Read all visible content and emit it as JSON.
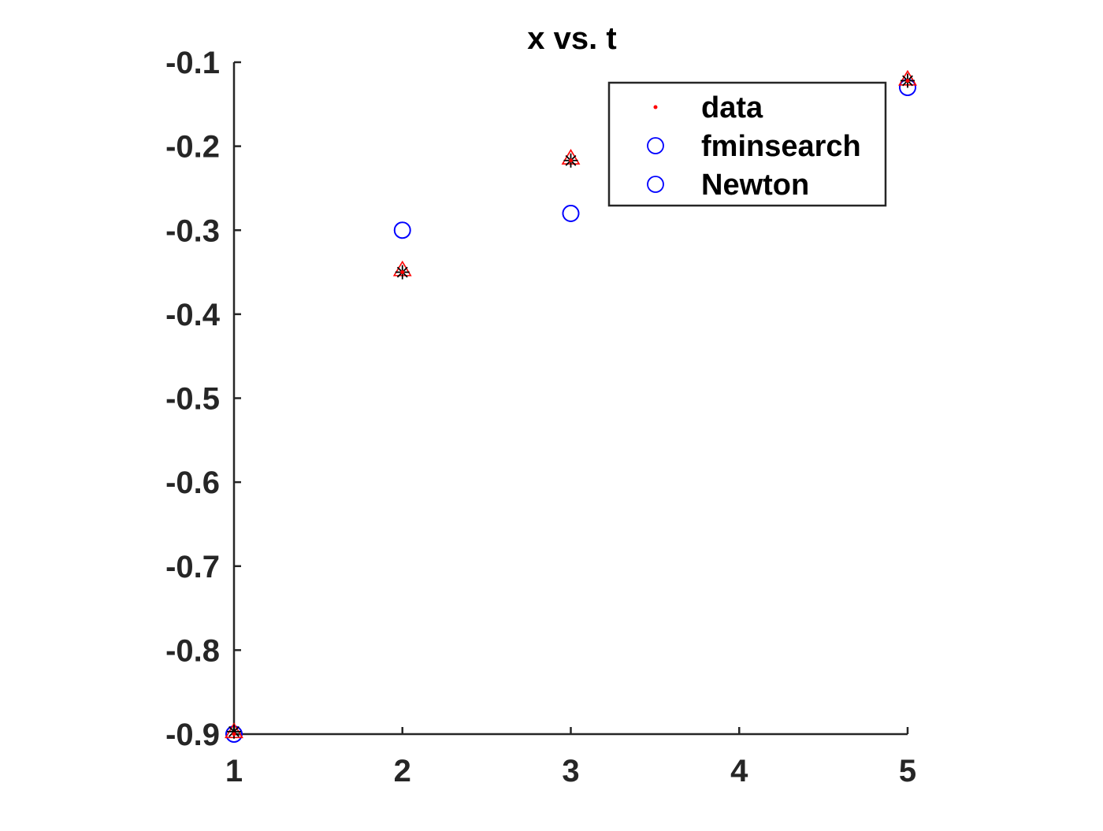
{
  "chart_data": {
    "type": "scatter",
    "title": "x vs. t",
    "xlabel": "",
    "ylabel": "",
    "xlim": [
      1,
      5
    ],
    "ylim": [
      -0.9,
      -0.1
    ],
    "xticks": [
      1,
      2,
      3,
      4,
      5
    ],
    "xtick_labels": [
      "1",
      "2",
      "3",
      "4",
      "5"
    ],
    "yticks": [
      -0.1,
      -0.2,
      -0.3,
      -0.4,
      -0.5,
      -0.6,
      -0.7,
      -0.8,
      -0.9
    ],
    "ytick_labels": [
      "-0.1",
      "-0.2",
      "-0.3",
      "-0.4",
      "-0.5",
      "-0.6",
      "-0.7",
      "-0.8",
      "-0.9"
    ],
    "grid": false,
    "legend_position": "top-right",
    "series": [
      {
        "name": "data",
        "marker": "dot",
        "color": "#ff0000",
        "x": [
          1,
          2,
          3,
          5
        ],
        "y": [
          -0.9,
          -0.35,
          -0.217,
          -0.122
        ]
      },
      {
        "name": "fminsearch",
        "marker": "circle",
        "color": "#0000ff",
        "x": [
          1,
          2,
          3,
          5
        ],
        "y": [
          -0.9,
          -0.3,
          -0.28,
          -0.13
        ]
      },
      {
        "name": "Newton",
        "marker": "circle",
        "color": "#0000ff",
        "x": [
          1,
          2,
          3,
          5
        ],
        "y": [
          -0.9,
          -0.3,
          -0.28,
          -0.13
        ]
      },
      {
        "marker": "triangle",
        "color": "#ff0000",
        "x": [
          1,
          2,
          3,
          5
        ],
        "y": [
          -0.897,
          -0.347,
          -0.214,
          -0.12
        ]
      },
      {
        "marker": "asterisk",
        "color": "#000000",
        "x": [
          1,
          2,
          3,
          5
        ],
        "y": [
          -0.897,
          -0.35,
          -0.217,
          -0.122
        ]
      }
    ],
    "legend": [
      "data",
      "fminsearch",
      "Newton"
    ]
  }
}
